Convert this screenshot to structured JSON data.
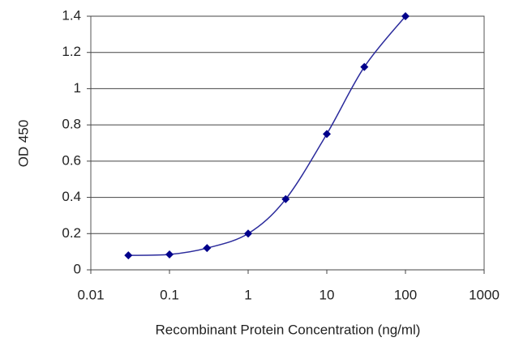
{
  "chart_data": {
    "type": "line",
    "x_label": "Recombinant Protein Concentration (ng/ml)",
    "y_label": "OD 450",
    "x": [
      0.03,
      0.1,
      0.3,
      1,
      3,
      10,
      30,
      100
    ],
    "series": [
      {
        "color": "#2b2b9c",
        "marker_color": "#00008b",
        "values": [
          0.08,
          0.085,
          0.12,
          0.2,
          0.39,
          0.75,
          1.12,
          1.4
        ]
      }
    ],
    "xlim": [
      0.01,
      1000
    ],
    "xticks": [
      0.01,
      0.1,
      1,
      10,
      100,
      1000
    ],
    "xscale": "log",
    "ylim": [
      0,
      1.4
    ],
    "yticks": [
      0,
      0.2,
      0.4,
      0.6,
      0.8,
      1,
      1.2,
      1.4
    ],
    "grid": true
  }
}
